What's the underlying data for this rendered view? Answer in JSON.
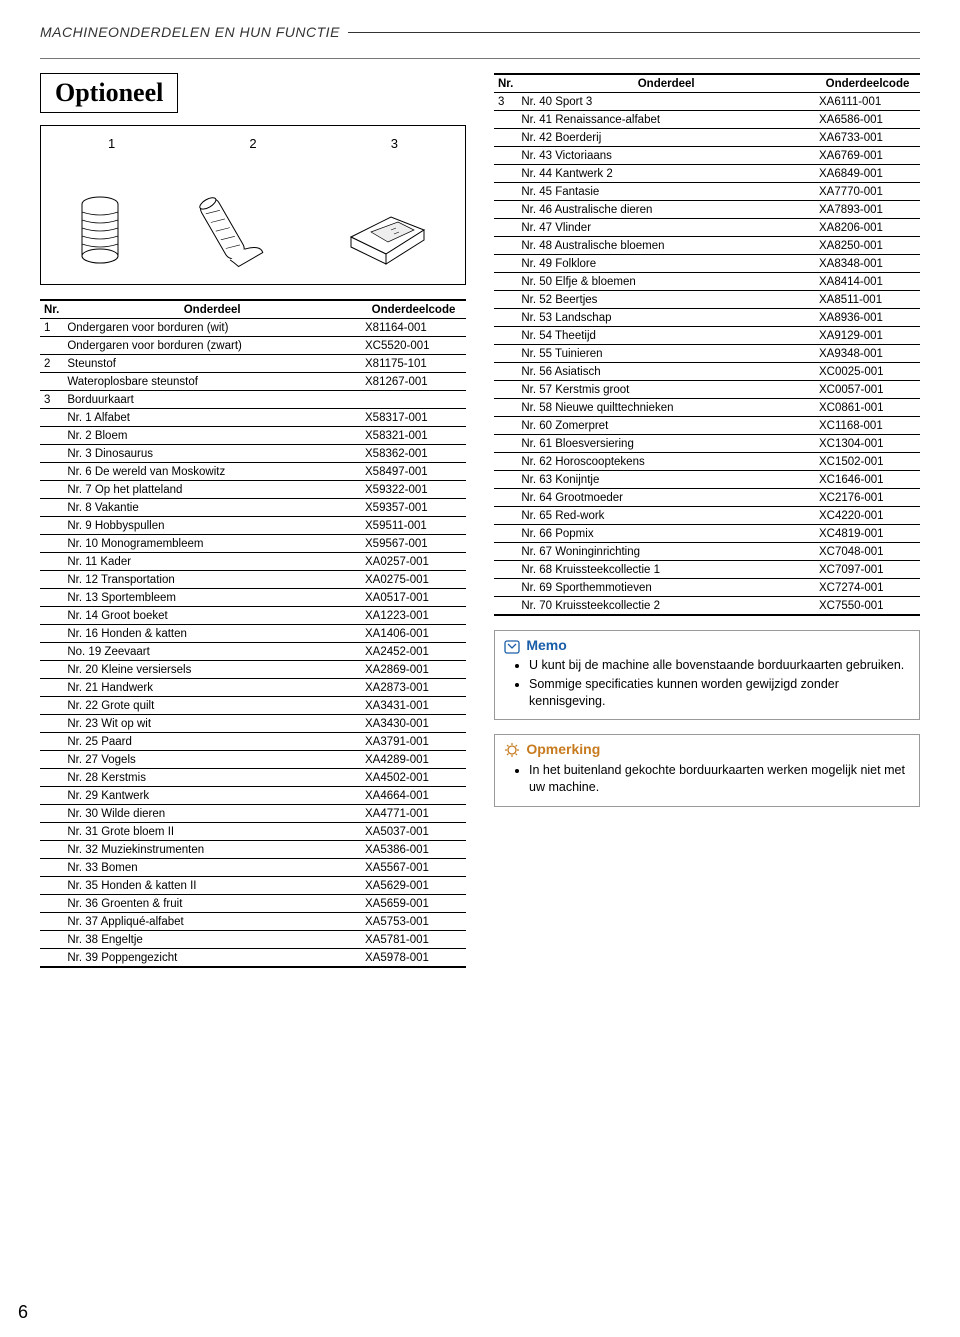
{
  "breadcrumb": "MACHINEONDERDELEN EN HUN FUNCTIE",
  "section_title": "Optioneel",
  "page_number": "6",
  "illustration": {
    "labels": [
      "1",
      "2",
      "3"
    ]
  },
  "table_headers": {
    "nr": "Nr.",
    "part": "Onderdeel",
    "code": "Onderdeelcode"
  },
  "left_table": [
    {
      "nr": "1",
      "part": "Ondergaren voor borduren (wit)",
      "code": "X81164-001"
    },
    {
      "nr": "",
      "part": "Ondergaren voor borduren (zwart)",
      "code": "XC5520-001"
    },
    {
      "nr": "2",
      "part": "Steunstof",
      "code": "X81175-101"
    },
    {
      "nr": "",
      "part": "Wateroplosbare steunstof",
      "code": "X81267-001"
    },
    {
      "nr": "3",
      "part": "Borduurkaart",
      "code": ""
    },
    {
      "nr": "",
      "part": "Nr. 1 Alfabet",
      "code": "X58317-001"
    },
    {
      "nr": "",
      "part": "Nr. 2 Bloem",
      "code": "X58321-001"
    },
    {
      "nr": "",
      "part": "Nr. 3 Dinosaurus",
      "code": "X58362-001"
    },
    {
      "nr": "",
      "part": "Nr. 6 De wereld van Moskowitz",
      "code": "X58497-001"
    },
    {
      "nr": "",
      "part": "Nr. 7 Op het platteland",
      "code": "X59322-001"
    },
    {
      "nr": "",
      "part": "Nr. 8 Vakantie",
      "code": "X59357-001"
    },
    {
      "nr": "",
      "part": "Nr. 9 Hobbyspullen",
      "code": "X59511-001"
    },
    {
      "nr": "",
      "part": "Nr. 10 Monogramembleem",
      "code": "X59567-001"
    },
    {
      "nr": "",
      "part": "Nr. 11 Kader",
      "code": "XA0257-001"
    },
    {
      "nr": "",
      "part": "Nr. 12 Transportation",
      "code": "XA0275-001"
    },
    {
      "nr": "",
      "part": "Nr. 13 Sportembleem",
      "code": "XA0517-001"
    },
    {
      "nr": "",
      "part": "Nr. 14 Groot boeket",
      "code": "XA1223-001"
    },
    {
      "nr": "",
      "part": "Nr. 16 Honden & katten",
      "code": "XA1406-001"
    },
    {
      "nr": "",
      "part": "No. 19 Zeevaart",
      "code": "XA2452-001"
    },
    {
      "nr": "",
      "part": "Nr. 20 Kleine versiersels",
      "code": "XA2869-001"
    },
    {
      "nr": "",
      "part": "Nr. 21 Handwerk",
      "code": "XA2873-001"
    },
    {
      "nr": "",
      "part": "Nr. 22 Grote quilt",
      "code": "XA3431-001"
    },
    {
      "nr": "",
      "part": "Nr. 23 Wit op wit",
      "code": "XA3430-001"
    },
    {
      "nr": "",
      "part": "Nr. 25 Paard",
      "code": "XA3791-001"
    },
    {
      "nr": "",
      "part": "Nr. 27 Vogels",
      "code": "XA4289-001"
    },
    {
      "nr": "",
      "part": "Nr. 28 Kerstmis",
      "code": "XA4502-001"
    },
    {
      "nr": "",
      "part": "Nr. 29 Kantwerk",
      "code": "XA4664-001"
    },
    {
      "nr": "",
      "part": "Nr. 30 Wilde dieren",
      "code": "XA4771-001"
    },
    {
      "nr": "",
      "part": "Nr. 31 Grote bloem II",
      "code": "XA5037-001"
    },
    {
      "nr": "",
      "part": "Nr. 32 Muziekinstrumenten",
      "code": "XA5386-001"
    },
    {
      "nr": "",
      "part": "Nr. 33 Bomen",
      "code": "XA5567-001"
    },
    {
      "nr": "",
      "part": "Nr. 35 Honden & katten II",
      "code": "XA5629-001"
    },
    {
      "nr": "",
      "part": "Nr. 36 Groenten & fruit",
      "code": "XA5659-001"
    },
    {
      "nr": "",
      "part": "Nr. 37 Appliqué-alfabet",
      "code": "XA5753-001"
    },
    {
      "nr": "",
      "part": "Nr. 38 Engeltje",
      "code": "XA5781-001"
    },
    {
      "nr": "",
      "part": "Nr. 39 Poppengezicht",
      "code": "XA5978-001"
    }
  ],
  "right_table": [
    {
      "nr": "3",
      "part": "Nr. 40 Sport 3",
      "code": "XA6111-001"
    },
    {
      "nr": "",
      "part": "Nr. 41 Renaissance-alfabet",
      "code": "XA6586-001"
    },
    {
      "nr": "",
      "part": "Nr. 42 Boerderij",
      "code": "XA6733-001"
    },
    {
      "nr": "",
      "part": "Nr. 43 Victoriaans",
      "code": "XA6769-001"
    },
    {
      "nr": "",
      "part": "Nr. 44 Kantwerk 2",
      "code": "XA6849-001"
    },
    {
      "nr": "",
      "part": "Nr. 45 Fantasie",
      "code": "XA7770-001"
    },
    {
      "nr": "",
      "part": "Nr. 46 Australische dieren",
      "code": "XA7893-001"
    },
    {
      "nr": "",
      "part": "Nr. 47 Vlinder",
      "code": "XA8206-001"
    },
    {
      "nr": "",
      "part": "Nr. 48 Australische bloemen",
      "code": "XA8250-001"
    },
    {
      "nr": "",
      "part": "Nr. 49 Folklore",
      "code": "XA8348-001"
    },
    {
      "nr": "",
      "part": "Nr. 50 Elfje & bloemen",
      "code": "XA8414-001"
    },
    {
      "nr": "",
      "part": "Nr. 52 Beertjes",
      "code": "XA8511-001"
    },
    {
      "nr": "",
      "part": "Nr. 53 Landschap",
      "code": "XA8936-001"
    },
    {
      "nr": "",
      "part": "Nr. 54 Theetijd",
      "code": "XA9129-001"
    },
    {
      "nr": "",
      "part": "Nr. 55 Tuinieren",
      "code": "XA9348-001"
    },
    {
      "nr": "",
      "part": "Nr. 56 Asiatisch",
      "code": "XC0025-001"
    },
    {
      "nr": "",
      "part": "Nr. 57 Kerstmis groot",
      "code": "XC0057-001"
    },
    {
      "nr": "",
      "part": "Nr. 58 Nieuwe quilttechnieken",
      "code": "XC0861-001"
    },
    {
      "nr": "",
      "part": "Nr. 60 Zomerpret",
      "code": "XC1168-001"
    },
    {
      "nr": "",
      "part": "Nr. 61 Bloesversiering",
      "code": "XC1304-001"
    },
    {
      "nr": "",
      "part": "Nr. 62 Horoscooptekens",
      "code": "XC1502-001"
    },
    {
      "nr": "",
      "part": "Nr. 63 Konijntje",
      "code": "XC1646-001"
    },
    {
      "nr": "",
      "part": "Nr. 64 Grootmoeder",
      "code": "XC2176-001"
    },
    {
      "nr": "",
      "part": "Nr. 65 Red-work",
      "code": "XC4220-001"
    },
    {
      "nr": "",
      "part": "Nr. 66 Popmix",
      "code": "XC4819-001"
    },
    {
      "nr": "",
      "part": "Nr. 67 Woninginrichting",
      "code": "XC7048-001"
    },
    {
      "nr": "",
      "part": "Nr. 68 Kruissteekcollectie 1",
      "code": "XC7097-001"
    },
    {
      "nr": "",
      "part": "Nr. 69 Sporthemmotieven",
      "code": "XC7274-001"
    },
    {
      "nr": "",
      "part": "Nr. 70 Kruissteekcollectie 2",
      "code": "XC7550-001"
    }
  ],
  "memo": {
    "title": "Memo",
    "items": [
      "U kunt bij de machine alle bovenstaande borduurkaarten gebruiken.",
      "Sommige specificaties kunnen worden gewijzigd zonder kennisgeving."
    ]
  },
  "warn": {
    "title": "Opmerking",
    "items": [
      "In het buitenland gekochte borduurkaarten werken mogelijk niet met uw machine."
    ]
  },
  "colors": {
    "memo_title": "#1a5da8",
    "warn_title": "#c77a1e",
    "text": "#000000",
    "border": "#000000",
    "callout_border": "#999999",
    "background": "#ffffff"
  }
}
